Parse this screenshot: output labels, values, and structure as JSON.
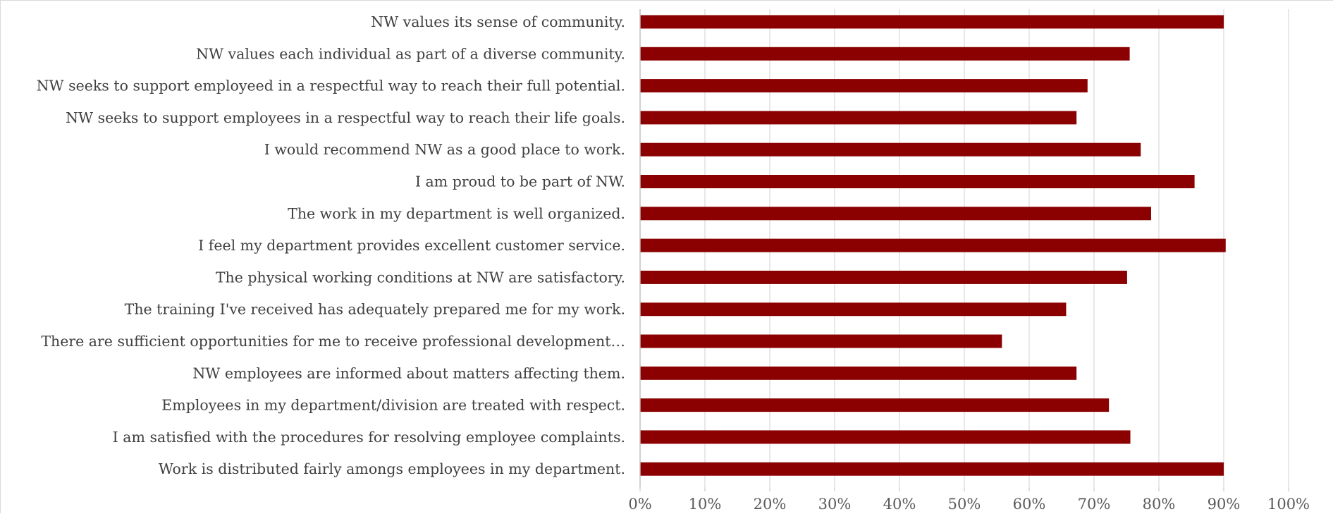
{
  "chart_data": {
    "type": "bar",
    "orientation": "horizontal",
    "title": "",
    "xlabel": "",
    "ylabel": "",
    "xlim": [
      0,
      1
    ],
    "x_ticks": [
      "0%",
      "10%",
      "20%",
      "30%",
      "40%",
      "50%",
      "60%",
      "70%",
      "80%",
      "90%",
      "100%"
    ],
    "grid": "vertical",
    "legend": "none",
    "bar_color": "#8b0000",
    "categories": [
      "NW values its sense of community.",
      "NW values each individual as part of a diverse community.",
      "NW seeks to support employeed in a respectful way to reach their full potential.",
      "NW seeks to support employees in a respectful way to reach their life goals.",
      "I would recommend NW as a good place to work.",
      "I am proud to be part of NW.",
      "The work in my department is well organized.",
      "I feel my department provides excellent customer service.",
      "The physical working conditions at NW are satisfactory.",
      "The training I've received has adequately prepared me for my work.",
      "There are sufficient opportunities for me to receive professional development…",
      "NW employees are informed about matters affecting them.",
      "Employees in my department/division are treated with respect.",
      "I am satisfied with the procedures for resolving employee complaints.",
      "Work is distributed fairly amongs employees in my department."
    ],
    "values": [
      0.9,
      0.755,
      0.69,
      0.673,
      0.772,
      0.855,
      0.788,
      0.903,
      0.751,
      0.657,
      0.558,
      0.673,
      0.723,
      0.756,
      0.9
    ]
  }
}
